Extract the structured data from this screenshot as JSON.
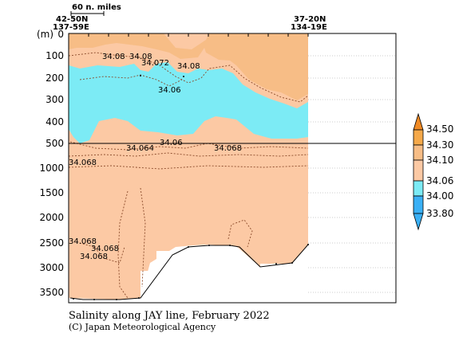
{
  "chart_data": {
    "type": "heatmap",
    "title": "Salinity along JAY line, February 2022",
    "credit": "(C) Japan Meteorological Agency",
    "y_unit": "(m)",
    "top_left_station": [
      "42-50N",
      "137-59E"
    ],
    "top_right_station": [
      "37-20N",
      "134-19E"
    ],
    "scale_label": "60 n. miles",
    "upper_y_ticks": [
      0,
      100,
      200,
      300,
      400,
      500
    ],
    "lower_y_ticks": [
      1000,
      1500,
      2000,
      2500,
      3000,
      3500
    ],
    "ylim": [
      3800,
      0
    ],
    "break_depth": 500,
    "colorbar_levels": [
      "33.80",
      "34.00",
      "34.06",
      "34.10",
      "34.30",
      "34.50"
    ],
    "colorbar_colors": [
      "#3ab0f5",
      "#7cebf5",
      "#fcc9a4",
      "#f7bd86",
      "#f5a94a",
      "#f08a24"
    ],
    "contour_labels": [
      "34.08",
      "34.08",
      "34.072",
      "34.08",
      "34.06",
      "34.06",
      "34.064",
      "34.068",
      "34.068",
      "34.068",
      "34.068",
      "34.068"
    ],
    "colors": {
      "band_34_06_34_10": "#fcc9a4",
      "band_34_00_34_06": "#7cebf5",
      "band_34_10_34_30": "#f7bd86"
    }
  }
}
